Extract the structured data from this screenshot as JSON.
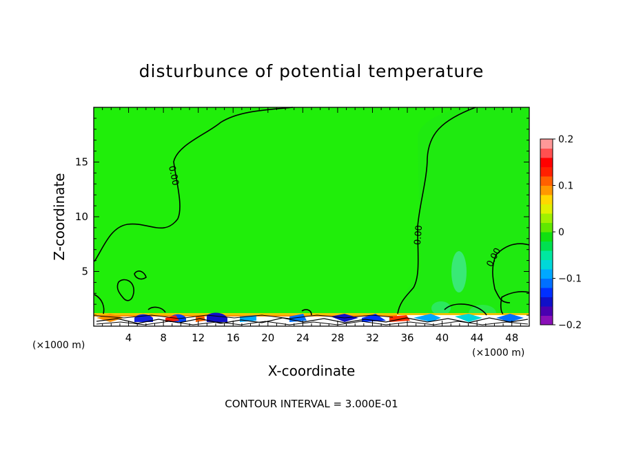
{
  "chart_data": {
    "type": "heatmap",
    "title": "disturbunce of potential temperature",
    "xlabel": "X-coordinate",
    "ylabel": "Z-coordinate",
    "x_unit": "(×1000 m)",
    "y_unit": "(×1000 m)",
    "xlim": [
      0,
      50
    ],
    "ylim": [
      0,
      20
    ],
    "x_ticks": [
      "4",
      "8",
      "12",
      "16",
      "20",
      "24",
      "28",
      "32",
      "36",
      "40",
      "44",
      "48"
    ],
    "y_ticks": [
      "5",
      "10",
      "15"
    ],
    "colorbar": {
      "range": [
        -0.2,
        0.2
      ],
      "tick_labels": [
        "0.2",
        "0.1",
        "0",
        "−0.1",
        "−0.2"
      ],
      "colors": [
        "#8a10b8",
        "#4a00b0",
        "#1010c8",
        "#0030ff",
        "#0070ff",
        "#00a8ff",
        "#00d8d8",
        "#00e8a0",
        "#00e050",
        "#10e010",
        "#60e800",
        "#a0f000",
        "#e0f000",
        "#ffd800",
        "#ff9800",
        "#ff6000",
        "#ff2000",
        "#ff0000",
        "#ff5050",
        "#ff9898"
      ]
    },
    "contour_label": "0.00",
    "contour_interval_text": "CONTOUR INTERVAL = 3.000E-01"
  }
}
